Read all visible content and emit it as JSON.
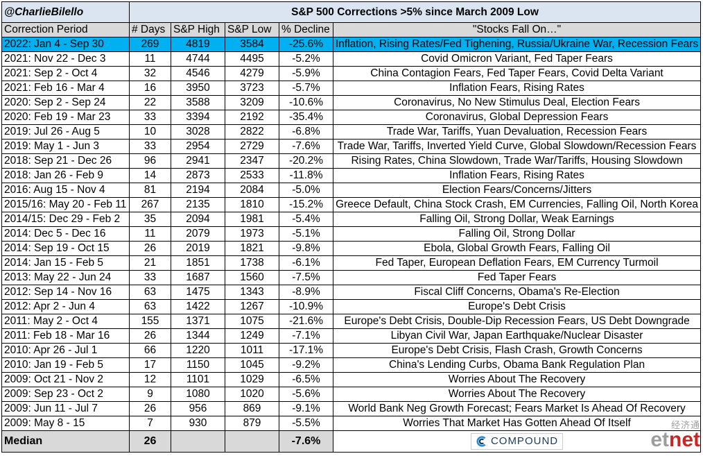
{
  "header": {
    "handle": "@CharlieBilello",
    "title": "S&P 500 Corrections >5% since March 2009 Low"
  },
  "columns": [
    "Correction Period",
    "# Days",
    "S&P High",
    "S&P Low",
    "% Decline",
    "\"Stocks Fall On…\""
  ],
  "rows": [
    {
      "period": "2022: Jan 4 - Sep 30",
      "days": "269",
      "high": "4819",
      "low": "3584",
      "decline": "-25.6%",
      "reason": "Inflation, Rising Rates/Fed Tighening, Russia/Ukraine War, Recession Fears"
    },
    {
      "period": "2021: Nov 22 - Dec 3",
      "days": "11",
      "high": "4744",
      "low": "4495",
      "decline": "-5.2%",
      "reason": "Covid Omicron Variant, Fed Taper Fears"
    },
    {
      "period": "2021: Sep 2 - Oct 4",
      "days": "32",
      "high": "4546",
      "low": "4279",
      "decline": "-5.9%",
      "reason": "China Contagion Fears, Fed Taper Fears, Covid Delta Variant"
    },
    {
      "period": "2021: Feb 16 - Mar 4",
      "days": "16",
      "high": "3950",
      "low": "3723",
      "decline": "-5.7%",
      "reason": "Inflation Fears, Rising Rates"
    },
    {
      "period": "2020: Sep 2 - Sep 24",
      "days": "22",
      "high": "3588",
      "low": "3209",
      "decline": "-10.6%",
      "reason": "Coronavirus, No New Stimulus Deal, Election Fears"
    },
    {
      "period": "2020: Feb 19 - Mar 23",
      "days": "33",
      "high": "3394",
      "low": "2192",
      "decline": "-35.4%",
      "reason": "Coronavirus, Global Depression Fears"
    },
    {
      "period": "2019: Jul 26 - Aug 5",
      "days": "10",
      "high": "3028",
      "low": "2822",
      "decline": "-6.8%",
      "reason": "Trade War, Tariffs, Yuan Devaluation, Recession Fears"
    },
    {
      "period": "2019: May 1 - Jun 3",
      "days": "33",
      "high": "2954",
      "low": "2729",
      "decline": "-7.6%",
      "reason": "Trade War, Tariffs, Inverted Yield Curve, Global Slowdown/Recession Fears"
    },
    {
      "period": "2018: Sep 21 - Dec 26",
      "days": "96",
      "high": "2941",
      "low": "2347",
      "decline": "-20.2%",
      "reason": "Rising Rates, China Slowdown, Trade War/Tariffs, Housing Slowdown"
    },
    {
      "period": "2018: Jan 26 - Feb 9",
      "days": "14",
      "high": "2873",
      "low": "2533",
      "decline": "-11.8%",
      "reason": "Inflation Fears, Rising Rates"
    },
    {
      "period": "2016: Aug 15 - Nov 4",
      "days": "81",
      "high": "2194",
      "low": "2084",
      "decline": "-5.0%",
      "reason": "Election Fears/Concerns/Jitters"
    },
    {
      "period": "2015/16: May 20 - Feb 11",
      "days": "267",
      "high": "2135",
      "low": "1810",
      "decline": "-15.2%",
      "reason": "Greece Default, China Stock Crash, EM Currencies, Falling Oil, North Korea"
    },
    {
      "period": "2014/15: Dec 29 - Feb 2",
      "days": "35",
      "high": "2094",
      "low": "1981",
      "decline": "-5.4%",
      "reason": "Falling Oil, Strong Dollar, Weak Earnings"
    },
    {
      "period": "2014: Dec 5 - Dec 16",
      "days": "11",
      "high": "2079",
      "low": "1973",
      "decline": "-5.1%",
      "reason": "Falling Oil, Strong Dollar"
    },
    {
      "period": "2014: Sep 19 - Oct 15",
      "days": "26",
      "high": "2019",
      "low": "1821",
      "decline": "-9.8%",
      "reason": "Ebola, Global Growth Fears, Falling Oil"
    },
    {
      "period": "2014: Jan 15 - Feb 5",
      "days": "21",
      "high": "1851",
      "low": "1738",
      "decline": "-6.1%",
      "reason": "Fed Taper, European Deflation Fears, EM Currency Turmoil"
    },
    {
      "period": "2013: May 22 - Jun 24",
      "days": "33",
      "high": "1687",
      "low": "1560",
      "decline": "-7.5%",
      "reason": "Fed Taper Fears"
    },
    {
      "period": "2012: Sep 14 - Nov 16",
      "days": "63",
      "high": "1475",
      "low": "1343",
      "decline": "-8.9%",
      "reason": "Fiscal Cliff Concerns, Obama's Re-Election"
    },
    {
      "period": "2012: Apr 2 - Jun 4",
      "days": "63",
      "high": "1422",
      "low": "1267",
      "decline": "-10.9%",
      "reason": "Europe's Debt Crisis"
    },
    {
      "period": "2011: May 2 - Oct 4",
      "days": "155",
      "high": "1371",
      "low": "1075",
      "decline": "-21.6%",
      "reason": "Europe's Debt Crisis, Double-Dip Recession Fears, US Debt Downgrade"
    },
    {
      "period": "2011: Feb 18 - Mar 16",
      "days": "26",
      "high": "1344",
      "low": "1249",
      "decline": "-7.1%",
      "reason": "Libyan Civil War, Japan Earthquake/Nuclear Disaster"
    },
    {
      "period": "2010: Apr 26 - Jul 1",
      "days": "66",
      "high": "1220",
      "low": "1011",
      "decline": "-17.1%",
      "reason": "Europe's Debt Crisis, Flash Crash, Growth Concerns"
    },
    {
      "period": "2010: Jan 19 - Feb 5",
      "days": "17",
      "high": "1150",
      "low": "1045",
      "decline": "-9.2%",
      "reason": "China's Lending Curbs, Obama Bank Regulation Plan"
    },
    {
      "period": "2009: Oct 21 - Nov 2",
      "days": "12",
      "high": "1101",
      "low": "1029",
      "decline": "-6.5%",
      "reason": "Worries About The Recovery"
    },
    {
      "period": "2009: Sep 23 - Oct 2",
      "days": "9",
      "high": "1080",
      "low": "1020",
      "decline": "-5.6%",
      "reason": "Worries About The Recovery"
    },
    {
      "period": "2009: Jun 11 - Jul 7",
      "days": "26",
      "high": "956",
      "low": "869",
      "decline": "-9.1%",
      "reason": "World Bank Neg Growth Forecast; Fears Market Is Ahead Of Recovery"
    },
    {
      "period": "2009: May 8 - 15",
      "days": "7",
      "high": "930",
      "low": "879",
      "decline": "-5.5%",
      "reason": "Worries That Market Has Gotten Ahead Of Itself"
    }
  ],
  "median": {
    "label": "Median",
    "days": "26",
    "decline": "-7.6%"
  },
  "logo": {
    "text": "COMPOUND",
    "icon": "compound-logo-icon"
  },
  "watermark": {
    "cn": "经济通",
    "brand_left": "et",
    "brand_right": "net"
  },
  "colors": {
    "highlight": "#00b0f0",
    "title_bg": "#dbe5f1",
    "header_bg": "#d9d9d9",
    "median_bg": "#d9d9d9"
  }
}
